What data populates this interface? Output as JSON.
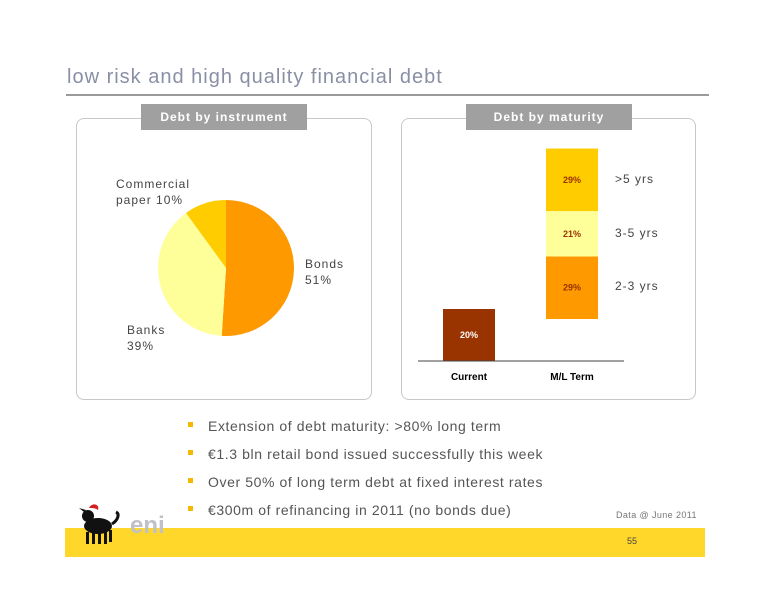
{
  "page": {
    "title": "low risk and high quality financial debt",
    "page_number": "55",
    "data_note": "Data @ June 2011"
  },
  "colors": {
    "accent": "#fed72a",
    "bonds": "#ff9900",
    "banks": "#ffff99",
    "commercial": "#ffcc00",
    "current": "#993300"
  },
  "logo": {
    "text": "eni",
    "icon": "six-legged-dog-icon"
  },
  "bullets": [
    "Extension of debt maturity: >80% long term",
    "€1.3 bln retail bond issued successfully this week",
    "Over 50% of long term debt at fixed interest rates",
    "€300m of refinancing in 2011 (no bonds due)"
  ],
  "chart_data": [
    {
      "type": "pie",
      "title": "Debt by instrument",
      "slices": [
        {
          "line1": "Bonds",
          "line2": "51%",
          "value": 51,
          "color": "#ff9900"
        },
        {
          "line1": "Banks",
          "line2": "39%",
          "value": 39,
          "color": "#ffff99"
        },
        {
          "line1": "Commercial",
          "line2": "paper 10%",
          "value": 10,
          "color": "#ffcc00"
        }
      ]
    },
    {
      "type": "bar",
      "title": "Debt by maturity",
      "categories": [
        "Current",
        "M/L Term"
      ],
      "current": {
        "value": 20,
        "label": "20%",
        "color": "#993300"
      },
      "ml_term_stack": [
        {
          "name": "2-3 yrs",
          "value": 29,
          "label": "29%",
          "color": "#ff9900"
        },
        {
          "name": "3-5 yrs",
          "value": 21,
          "label": "21%",
          "color": "#ffff99"
        },
        {
          "name": ">5 yrs",
          "value": 29,
          "label": "29%",
          "color": "#ffcc00"
        }
      ]
    }
  ]
}
